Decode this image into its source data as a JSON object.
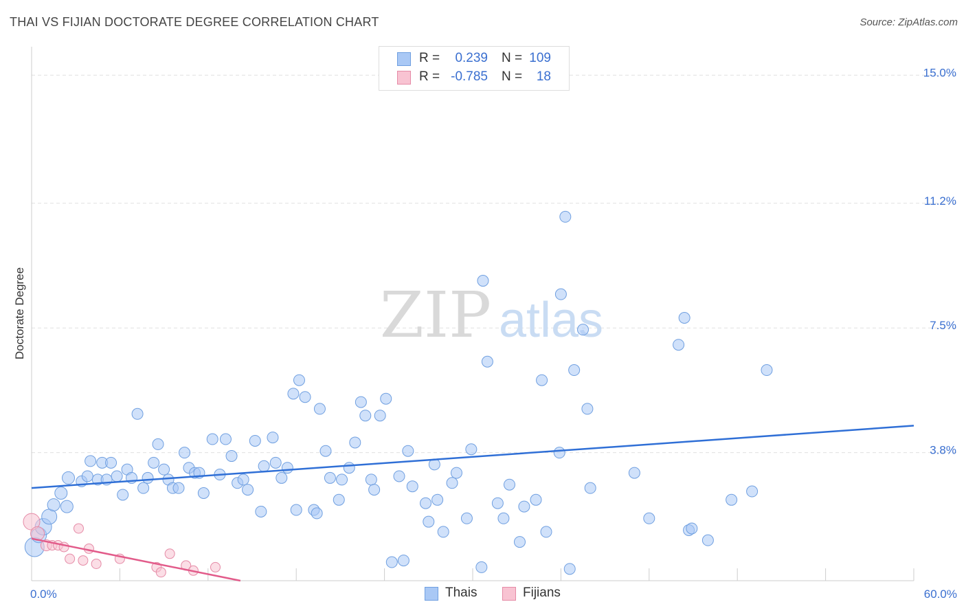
{
  "title": "THAI VS FIJIAN DOCTORATE DEGREE CORRELATION CHART",
  "source": "Source: ZipAtlas.com",
  "watermark": {
    "zip": "ZIP",
    "atlas": "atlas"
  },
  "legend": {
    "rows": [
      {
        "r_label": "R =",
        "r_value": "0.239",
        "n_label": "N =",
        "n_value": "109",
        "color": "#a9c8f5",
        "border": "#6f9fe0"
      },
      {
        "r_label": "R =",
        "r_value": "-0.785",
        "n_label": "N =",
        "n_value": "18",
        "color": "#f8c3d2",
        "border": "#e58aa6"
      }
    ]
  },
  "chart_data": {
    "type": "scatter",
    "title": "THAI VS FIJIAN DOCTORATE DEGREE CORRELATION CHART",
    "xlabel": "",
    "ylabel": "Doctorate Degree",
    "xlim": [
      0,
      60
    ],
    "ylim": [
      0,
      15.6
    ],
    "x_tick_labels": [
      "0.0%",
      "60.0%"
    ],
    "y_ticks": [
      3.8,
      7.5,
      11.2,
      15.0
    ],
    "y_tick_labels": [
      "3.8%",
      "7.5%",
      "11.2%",
      "15.0%"
    ],
    "grid": "horizontal dashed",
    "legend_position": "top-center",
    "series": [
      {
        "name": "Thais",
        "color": "#a9c8f5",
        "stroke": "#6f9fe0",
        "trend_color": "#2f6fd6",
        "trend": [
          [
            0,
            2.75
          ],
          [
            60,
            4.6
          ]
        ],
        "points": [
          [
            0.2,
            1.0,
            14
          ],
          [
            0.5,
            1.35,
            11
          ],
          [
            0.8,
            1.6,
            12
          ],
          [
            1.2,
            1.9,
            11
          ],
          [
            1.5,
            2.25,
            9
          ],
          [
            2.0,
            2.6,
            9
          ],
          [
            2.4,
            2.2,
            9
          ],
          [
            2.5,
            3.05,
            9
          ],
          [
            3.4,
            2.95,
            8
          ],
          [
            3.8,
            3.1,
            8
          ],
          [
            4.0,
            3.55,
            8
          ],
          [
            4.5,
            3.0,
            8
          ],
          [
            4.8,
            3.5,
            8
          ],
          [
            5.1,
            3.0,
            8
          ],
          [
            5.4,
            3.5,
            8
          ],
          [
            5.8,
            3.1,
            8
          ],
          [
            6.2,
            2.55,
            8
          ],
          [
            6.5,
            3.3,
            8
          ],
          [
            6.8,
            3.05,
            8
          ],
          [
            7.2,
            4.95,
            8
          ],
          [
            7.6,
            2.75,
            8
          ],
          [
            7.9,
            3.05,
            8
          ],
          [
            8.3,
            3.5,
            8
          ],
          [
            8.6,
            4.05,
            8
          ],
          [
            9.0,
            3.3,
            8
          ],
          [
            9.3,
            3.0,
            8
          ],
          [
            9.6,
            2.75,
            8
          ],
          [
            10.0,
            2.75,
            8
          ],
          [
            10.4,
            3.8,
            8
          ],
          [
            10.7,
            3.35,
            8
          ],
          [
            11.1,
            3.2,
            8
          ],
          [
            11.4,
            3.2,
            8
          ],
          [
            11.7,
            2.6,
            8
          ],
          [
            12.3,
            4.2,
            8
          ],
          [
            12.8,
            3.15,
            8
          ],
          [
            13.2,
            4.2,
            8
          ],
          [
            13.6,
            3.7,
            8
          ],
          [
            14.0,
            2.9,
            8
          ],
          [
            14.4,
            3.0,
            8
          ],
          [
            14.7,
            2.7,
            8
          ],
          [
            15.2,
            4.15,
            8
          ],
          [
            15.6,
            2.05,
            8
          ],
          [
            15.8,
            3.4,
            8
          ],
          [
            16.4,
            4.25,
            8
          ],
          [
            16.6,
            3.5,
            8
          ],
          [
            17.0,
            3.05,
            8
          ],
          [
            17.4,
            3.35,
            8
          ],
          [
            17.8,
            5.55,
            8
          ],
          [
            18.0,
            2.1,
            8
          ],
          [
            18.2,
            5.95,
            8
          ],
          [
            18.6,
            5.45,
            8
          ],
          [
            19.2,
            2.1,
            8
          ],
          [
            19.4,
            2.0,
            8
          ],
          [
            19.6,
            5.1,
            8
          ],
          [
            20.0,
            3.85,
            8
          ],
          [
            20.3,
            3.05,
            8
          ],
          [
            20.9,
            2.4,
            8
          ],
          [
            21.1,
            3.0,
            8
          ],
          [
            21.6,
            3.35,
            8
          ],
          [
            22.0,
            4.1,
            8
          ],
          [
            22.4,
            5.3,
            8
          ],
          [
            22.7,
            4.9,
            8
          ],
          [
            23.1,
            3.0,
            8
          ],
          [
            23.3,
            2.7,
            8
          ],
          [
            23.7,
            4.9,
            8
          ],
          [
            24.1,
            5.4,
            8
          ],
          [
            24.5,
            0.55,
            8
          ],
          [
            25.0,
            3.1,
            8
          ],
          [
            25.3,
            0.6,
            8
          ],
          [
            25.6,
            3.85,
            8
          ],
          [
            25.9,
            2.8,
            8
          ],
          [
            26.8,
            2.3,
            8
          ],
          [
            27.0,
            1.75,
            8
          ],
          [
            27.4,
            3.45,
            8
          ],
          [
            27.6,
            2.4,
            8
          ],
          [
            28.0,
            1.45,
            8
          ],
          [
            28.6,
            2.9,
            8
          ],
          [
            28.9,
            3.2,
            8
          ],
          [
            29.6,
            1.85,
            8
          ],
          [
            29.9,
            3.9,
            8
          ],
          [
            30.6,
            0.4,
            8
          ],
          [
            31.0,
            6.5,
            8
          ],
          [
            31.7,
            2.3,
            8
          ],
          [
            32.1,
            1.85,
            8
          ],
          [
            32.5,
            2.85,
            8
          ],
          [
            33.2,
            1.15,
            8
          ],
          [
            33.5,
            2.2,
            8
          ],
          [
            34.3,
            2.4,
            8
          ],
          [
            34.7,
            5.95,
            8
          ],
          [
            35.9,
            3.8,
            8
          ],
          [
            36.0,
            8.5,
            8
          ],
          [
            36.3,
            10.8,
            8
          ],
          [
            36.6,
            0.35,
            8
          ],
          [
            36.9,
            6.25,
            8
          ],
          [
            37.5,
            7.45,
            8
          ],
          [
            38.0,
            2.75,
            8
          ],
          [
            37.8,
            5.1,
            8
          ],
          [
            35.0,
            1.45,
            8
          ],
          [
            41.0,
            3.2,
            8
          ],
          [
            42.0,
            1.85,
            8
          ],
          [
            44.0,
            7.0,
            8
          ],
          [
            44.4,
            7.8,
            8
          ],
          [
            44.7,
            1.5,
            8
          ],
          [
            44.9,
            1.55,
            8
          ],
          [
            46.0,
            1.2,
            8
          ],
          [
            47.6,
            2.4,
            8
          ],
          [
            49.0,
            2.65,
            8
          ],
          [
            50.0,
            6.25,
            8
          ],
          [
            30.7,
            8.9,
            8
          ]
        ]
      },
      {
        "name": "Fijians",
        "color": "#f8c3d2",
        "stroke": "#e58aa6",
        "trend_color": "#e25b8a",
        "trend": [
          [
            0,
            1.25
          ],
          [
            14.2,
            0.0
          ]
        ],
        "points": [
          [
            0.0,
            1.75,
            12
          ],
          [
            0.4,
            1.4,
            10
          ],
          [
            1.0,
            1.05,
            8
          ],
          [
            1.4,
            1.05,
            7
          ],
          [
            1.8,
            1.05,
            7
          ],
          [
            2.2,
            1.0,
            7
          ],
          [
            2.6,
            0.65,
            7
          ],
          [
            3.2,
            1.55,
            7
          ],
          [
            3.5,
            0.6,
            7
          ],
          [
            3.9,
            0.95,
            7
          ],
          [
            4.4,
            0.5,
            7
          ],
          [
            6.0,
            0.65,
            7
          ],
          [
            8.5,
            0.4,
            7
          ],
          [
            8.8,
            0.25,
            7
          ],
          [
            9.4,
            0.8,
            7
          ],
          [
            10.5,
            0.45,
            7
          ],
          [
            11.0,
            0.3,
            7
          ],
          [
            12.5,
            0.4,
            7
          ]
        ]
      }
    ]
  },
  "bottom_legend": [
    {
      "label": "Thais",
      "color": "#a9c8f5",
      "border": "#6f9fe0"
    },
    {
      "label": "Fijians",
      "color": "#f8c3d2",
      "border": "#e58aa6"
    }
  ]
}
